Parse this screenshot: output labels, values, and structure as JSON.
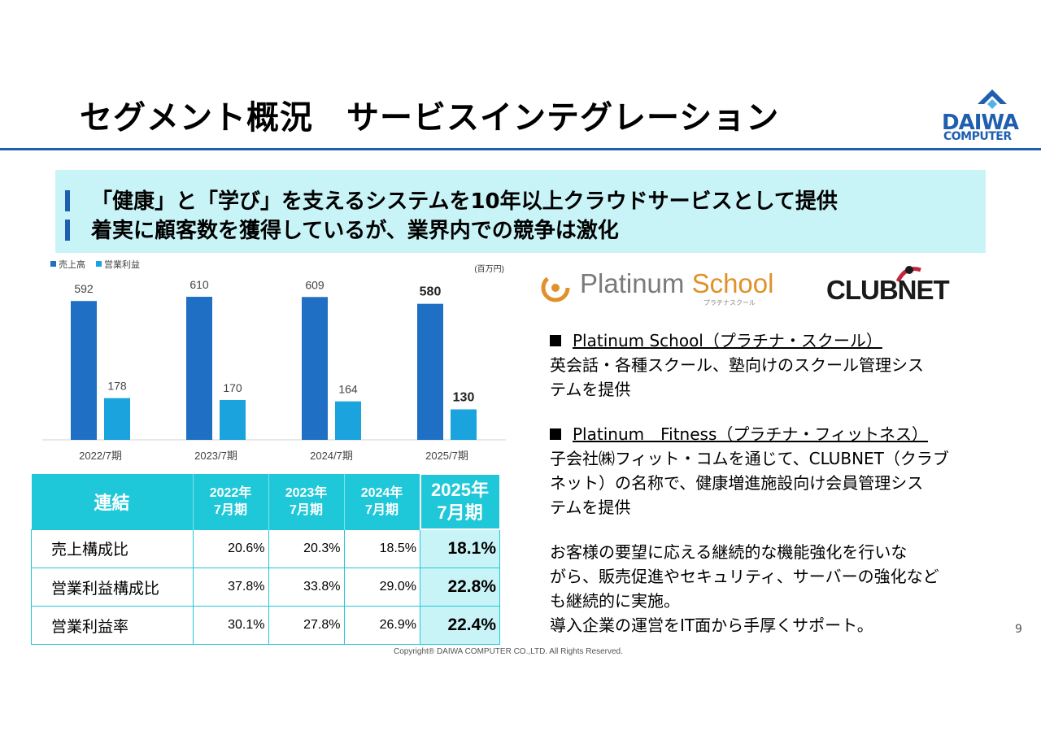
{
  "slide": {
    "title": "セグメント概況　サービスインテグレーション",
    "page_number": "9",
    "copyright": "Copyright® DAIWA COMPUTER CO.,LTD. All Rights Reserved."
  },
  "logo": {
    "wordmark": "DAIWA",
    "subline": "COMPUTER",
    "color": "#1f5fae"
  },
  "banner": {
    "lines": [
      "「健康」と「学び」を支えるシステムを10年以上クラウドサービスとして提供",
      "着実に顧客数を獲得しているが、業界内での競争は激化"
    ]
  },
  "chart_data": {
    "type": "bar",
    "unit_label": "(百万円)",
    "categories": [
      "2022/7期",
      "2023/7期",
      "2024/7期",
      "2025/7期"
    ],
    "series": [
      {
        "name": "売上高",
        "values": [
          592,
          610,
          609,
          580
        ],
        "color": "#1f6fc4"
      },
      {
        "name": "営業利益",
        "values": [
          178,
          170,
          164,
          130
        ],
        "color": "#1aa3dc"
      }
    ],
    "highlight_index": 3,
    "legend_position": "top-left",
    "grid": false
  },
  "table": {
    "corner": "連結",
    "headers": [
      {
        "year": "2022年",
        "term": "7月期"
      },
      {
        "year": "2023年",
        "term": "7月期"
      },
      {
        "year": "2024年",
        "term": "7月期"
      },
      {
        "year": "2025年",
        "term": "7月期"
      }
    ],
    "rows": [
      {
        "label": "売上構成比",
        "values": [
          "20.6%",
          "20.3%",
          "18.5%",
          "18.1%"
        ]
      },
      {
        "label": "営業利益構成比",
        "values": [
          "37.8%",
          "33.8%",
          "29.0%",
          "22.8%"
        ]
      },
      {
        "label": "営業利益率",
        "values": [
          "30.1%",
          "27.8%",
          "26.9%",
          "22.4%"
        ]
      }
    ]
  },
  "brands": {
    "platinum_school": {
      "word1": "Platinum",
      "word2": "School",
      "kana": "プラチナスクール"
    },
    "clubnet": {
      "text": "CLUBNET"
    }
  },
  "descriptions": {
    "school_head": "Platinum School（プラチナ・スクール）",
    "school_body": [
      "英会話・各種スクール、塾向けのスクール管理シス",
      "テムを提供"
    ],
    "fitness_head": "Platinum　Fitness（プラチナ・フィットネス）",
    "fitness_body": [
      "子会社㈱フィット・コムを通じて、CLUBNET（クラブ",
      "ネット）の名称で、健康増進施設向け会員管理シス",
      "テムを提供"
    ],
    "summary": [
      "お客様の要望に応える継続的な機能強化を行いな",
      "がら、販売促進やセキュリティ、サーバーの強化など",
      "も継続的に実施。",
      "導入企業の運営をIT面から手厚くサポート。"
    ]
  }
}
